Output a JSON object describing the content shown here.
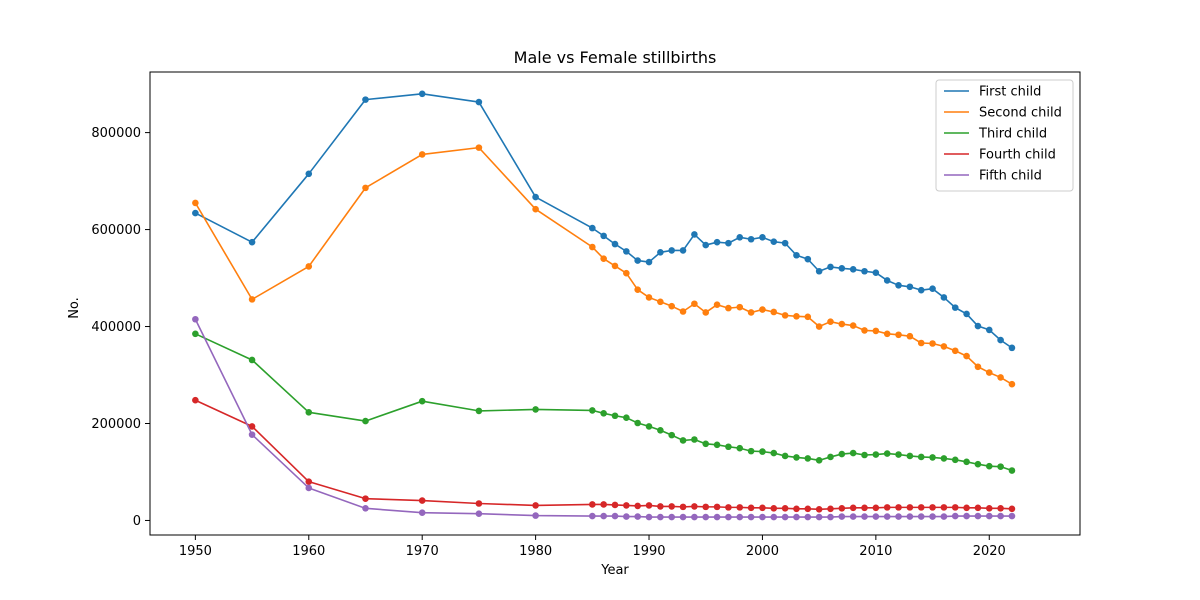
{
  "chart_data": {
    "type": "line",
    "title": "Male vs Female stillbirths",
    "xlabel": "Year",
    "ylabel": "No.",
    "xlim": [
      1946,
      2028
    ],
    "ylim": [
      -30000,
      925000
    ],
    "xticks": [
      1950,
      1960,
      1970,
      1980,
      1990,
      2000,
      2010,
      2020
    ],
    "yticks": [
      0,
      200000,
      400000,
      600000,
      800000
    ],
    "grid": false,
    "legend": "top-right",
    "x": [
      1950,
      1955,
      1960,
      1965,
      1970,
      1975,
      1980,
      1985,
      1986,
      1987,
      1988,
      1989,
      1990,
      1991,
      1992,
      1993,
      1994,
      1995,
      1996,
      1997,
      1998,
      1999,
      2000,
      2001,
      2002,
      2003,
      2004,
      2005,
      2006,
      2007,
      2008,
      2009,
      2010,
      2011,
      2012,
      2013,
      2014,
      2015,
      2016,
      2017,
      2018,
      2019,
      2020,
      2021,
      2022
    ],
    "series": [
      {
        "name": "First child",
        "color": "#1f77b4",
        "values": [
          634000,
          574000,
          715000,
          868000,
          880000,
          863000,
          667000,
          603000,
          587000,
          570000,
          555000,
          536000,
          533000,
          553000,
          557000,
          557000,
          590000,
          568000,
          574000,
          572000,
          584000,
          580000,
          584000,
          575000,
          572000,
          547000,
          539000,
          514000,
          523000,
          520000,
          518000,
          514000,
          511000,
          495000,
          485000,
          482000,
          475000,
          478000,
          460000,
          439000,
          426000,
          401000,
          393000,
          372000,
          356000
        ]
      },
      {
        "name": "Second child",
        "color": "#ff7f0e",
        "values": [
          655000,
          456000,
          524000,
          686000,
          755000,
          769000,
          642000,
          564000,
          540000,
          525000,
          510000,
          476000,
          460000,
          451000,
          442000,
          431000,
          447000,
          429000,
          445000,
          438000,
          440000,
          429000,
          435000,
          430000,
          423000,
          421000,
          420000,
          400000,
          410000,
          405000,
          402000,
          392000,
          391000,
          385000,
          383000,
          380000,
          366000,
          365000,
          359000,
          350000,
          339000,
          317000,
          305000,
          295000,
          281000
        ]
      },
      {
        "name": "Third child",
        "color": "#2ca02c",
        "values": [
          385000,
          331000,
          223000,
          205000,
          246000,
          226000,
          229000,
          227000,
          221000,
          216000,
          212000,
          201000,
          194000,
          186000,
          176000,
          165000,
          167000,
          158000,
          156000,
          152000,
          149000,
          143000,
          142000,
          139000,
          133000,
          130000,
          128000,
          124000,
          131000,
          137000,
          139000,
          135000,
          136000,
          138000,
          136000,
          133000,
          131000,
          130000,
          128000,
          125000,
          121000,
          116000,
          112000,
          111000,
          103000
        ]
      },
      {
        "name": "Fourth child",
        "color": "#d62728",
        "values": [
          248000,
          194000,
          80000,
          45000,
          41000,
          35000,
          31000,
          33000,
          33000,
          32000,
          31000,
          30000,
          31000,
          29000,
          29000,
          28000,
          29000,
          28000,
          28000,
          27000,
          27000,
          26000,
          26000,
          25000,
          25000,
          24000,
          24000,
          23000,
          24000,
          25000,
          26000,
          26000,
          26000,
          27000,
          27000,
          27000,
          27000,
          27000,
          27000,
          27000,
          26000,
          26000,
          25000,
          25000,
          24000
        ]
      },
      {
        "name": "Fifth child",
        "color": "#9467bd",
        "values": [
          415000,
          177000,
          67000,
          25000,
          16000,
          14000,
          10000,
          9000,
          9000,
          9000,
          8000,
          8000,
          7000,
          7000,
          7000,
          7000,
          7000,
          7000,
          7000,
          7000,
          7000,
          7000,
          7000,
          7000,
          7000,
          7000,
          7000,
          7000,
          7000,
          8000,
          8000,
          8000,
          8000,
          8000,
          8000,
          8000,
          8000,
          8000,
          8000,
          9000,
          9000,
          9000,
          9000,
          9000,
          9000
        ]
      }
    ]
  }
}
